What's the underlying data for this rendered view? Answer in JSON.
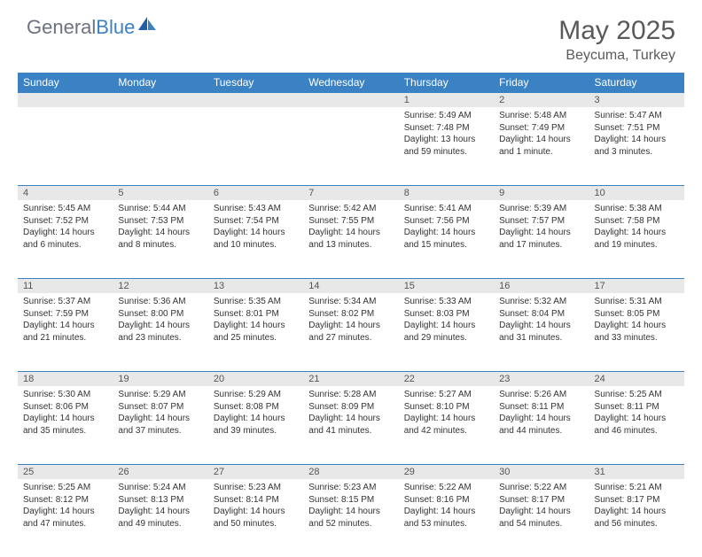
{
  "brand": {
    "part1": "General",
    "part2": "Blue"
  },
  "title": "May 2025",
  "location": "Beycuma, Turkey",
  "colors": {
    "header_bg": "#3b82c4",
    "daynum_bg": "#e8e8e8",
    "text": "#333333",
    "title_color": "#5a5a5a"
  },
  "weekdays": [
    "Sunday",
    "Monday",
    "Tuesday",
    "Wednesday",
    "Thursday",
    "Friday",
    "Saturday"
  ],
  "weeks": [
    [
      null,
      null,
      null,
      null,
      {
        "n": "1",
        "sunrise": "5:49 AM",
        "sunset": "7:48 PM",
        "daylight": "13 hours and 59 minutes."
      },
      {
        "n": "2",
        "sunrise": "5:48 AM",
        "sunset": "7:49 PM",
        "daylight": "14 hours and 1 minute."
      },
      {
        "n": "3",
        "sunrise": "5:47 AM",
        "sunset": "7:51 PM",
        "daylight": "14 hours and 3 minutes."
      }
    ],
    [
      {
        "n": "4",
        "sunrise": "5:45 AM",
        "sunset": "7:52 PM",
        "daylight": "14 hours and 6 minutes."
      },
      {
        "n": "5",
        "sunrise": "5:44 AM",
        "sunset": "7:53 PM",
        "daylight": "14 hours and 8 minutes."
      },
      {
        "n": "6",
        "sunrise": "5:43 AM",
        "sunset": "7:54 PM",
        "daylight": "14 hours and 10 minutes."
      },
      {
        "n": "7",
        "sunrise": "5:42 AM",
        "sunset": "7:55 PM",
        "daylight": "14 hours and 13 minutes."
      },
      {
        "n": "8",
        "sunrise": "5:41 AM",
        "sunset": "7:56 PM",
        "daylight": "14 hours and 15 minutes."
      },
      {
        "n": "9",
        "sunrise": "5:39 AM",
        "sunset": "7:57 PM",
        "daylight": "14 hours and 17 minutes."
      },
      {
        "n": "10",
        "sunrise": "5:38 AM",
        "sunset": "7:58 PM",
        "daylight": "14 hours and 19 minutes."
      }
    ],
    [
      {
        "n": "11",
        "sunrise": "5:37 AM",
        "sunset": "7:59 PM",
        "daylight": "14 hours and 21 minutes."
      },
      {
        "n": "12",
        "sunrise": "5:36 AM",
        "sunset": "8:00 PM",
        "daylight": "14 hours and 23 minutes."
      },
      {
        "n": "13",
        "sunrise": "5:35 AM",
        "sunset": "8:01 PM",
        "daylight": "14 hours and 25 minutes."
      },
      {
        "n": "14",
        "sunrise": "5:34 AM",
        "sunset": "8:02 PM",
        "daylight": "14 hours and 27 minutes."
      },
      {
        "n": "15",
        "sunrise": "5:33 AM",
        "sunset": "8:03 PM",
        "daylight": "14 hours and 29 minutes."
      },
      {
        "n": "16",
        "sunrise": "5:32 AM",
        "sunset": "8:04 PM",
        "daylight": "14 hours and 31 minutes."
      },
      {
        "n": "17",
        "sunrise": "5:31 AM",
        "sunset": "8:05 PM",
        "daylight": "14 hours and 33 minutes."
      }
    ],
    [
      {
        "n": "18",
        "sunrise": "5:30 AM",
        "sunset": "8:06 PM",
        "daylight": "14 hours and 35 minutes."
      },
      {
        "n": "19",
        "sunrise": "5:29 AM",
        "sunset": "8:07 PM",
        "daylight": "14 hours and 37 minutes."
      },
      {
        "n": "20",
        "sunrise": "5:29 AM",
        "sunset": "8:08 PM",
        "daylight": "14 hours and 39 minutes."
      },
      {
        "n": "21",
        "sunrise": "5:28 AM",
        "sunset": "8:09 PM",
        "daylight": "14 hours and 41 minutes."
      },
      {
        "n": "22",
        "sunrise": "5:27 AM",
        "sunset": "8:10 PM",
        "daylight": "14 hours and 42 minutes."
      },
      {
        "n": "23",
        "sunrise": "5:26 AM",
        "sunset": "8:11 PM",
        "daylight": "14 hours and 44 minutes."
      },
      {
        "n": "24",
        "sunrise": "5:25 AM",
        "sunset": "8:11 PM",
        "daylight": "14 hours and 46 minutes."
      }
    ],
    [
      {
        "n": "25",
        "sunrise": "5:25 AM",
        "sunset": "8:12 PM",
        "daylight": "14 hours and 47 minutes."
      },
      {
        "n": "26",
        "sunrise": "5:24 AM",
        "sunset": "8:13 PM",
        "daylight": "14 hours and 49 minutes."
      },
      {
        "n": "27",
        "sunrise": "5:23 AM",
        "sunset": "8:14 PM",
        "daylight": "14 hours and 50 minutes."
      },
      {
        "n": "28",
        "sunrise": "5:23 AM",
        "sunset": "8:15 PM",
        "daylight": "14 hours and 52 minutes."
      },
      {
        "n": "29",
        "sunrise": "5:22 AM",
        "sunset": "8:16 PM",
        "daylight": "14 hours and 53 minutes."
      },
      {
        "n": "30",
        "sunrise": "5:22 AM",
        "sunset": "8:17 PM",
        "daylight": "14 hours and 54 minutes."
      },
      {
        "n": "31",
        "sunrise": "5:21 AM",
        "sunset": "8:17 PM",
        "daylight": "14 hours and 56 minutes."
      }
    ]
  ],
  "labels": {
    "sunrise": "Sunrise:",
    "sunset": "Sunset:",
    "daylight": "Daylight:"
  }
}
